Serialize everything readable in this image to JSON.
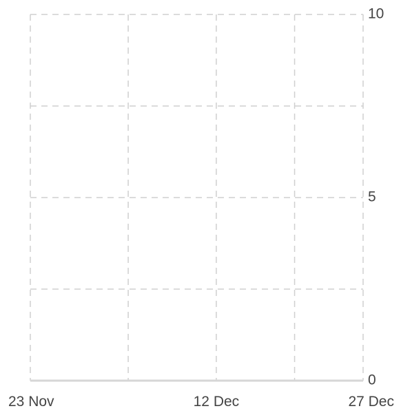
{
  "chart_data": {
    "type": "line",
    "title": "",
    "xlabel": "",
    "ylabel": "",
    "x_ticks": [
      {
        "label": "23 Nov",
        "date": "2023-11-23"
      },
      {
        "label": "12 Dec",
        "date": "2023-12-12"
      },
      {
        "label": "27 Dec",
        "date": "2023-12-27"
      }
    ],
    "x_grid_dates": [
      "2023-11-23",
      "2023-12-03",
      "2023-12-12",
      "2023-12-20",
      "2023-12-27"
    ],
    "xlim": [
      "2023-11-23",
      "2023-12-27"
    ],
    "y_ticks": [
      0,
      5,
      10
    ],
    "y_grid": [
      0,
      2.5,
      5,
      7.5,
      10
    ],
    "ylim": [
      0,
      10
    ],
    "y_axis_side": "right",
    "grid": true,
    "series": []
  }
}
